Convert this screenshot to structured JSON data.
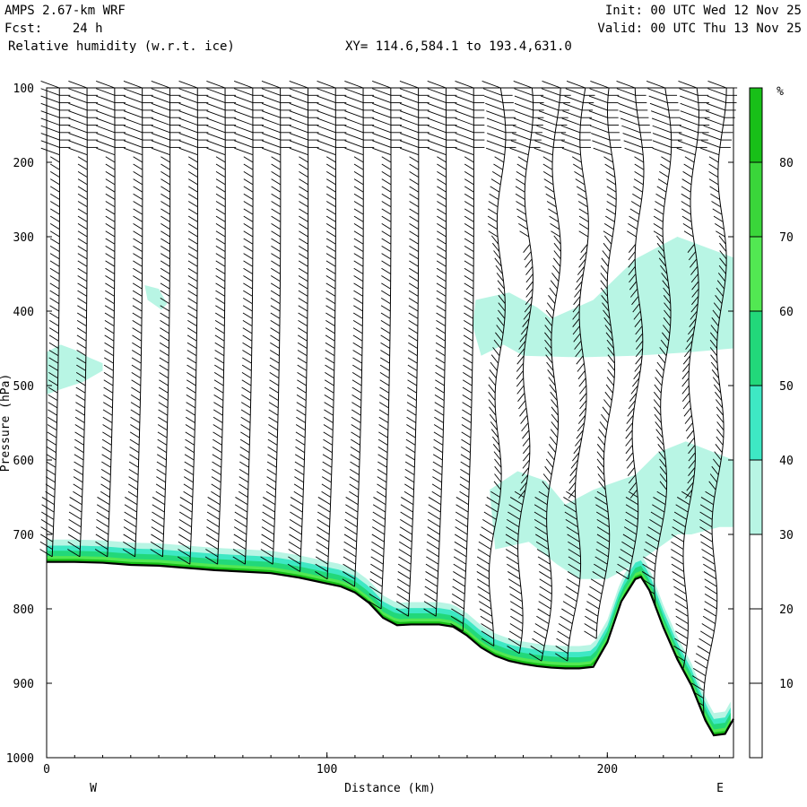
{
  "header": {
    "model": "AMPS 2.67-km WRF",
    "forecast": "Fcst:    24 h",
    "field": "Relative humidity (w.r.t. ice)",
    "init": "Init: 00 UTC Wed 12 Nov 25",
    "valid": "Valid: 00 UTC Thu 13 Nov 25",
    "xy": "XY= 114.6,584.1 to 193.4,631.0"
  },
  "chart_data": {
    "type": "cross-section",
    "title": "Relative humidity (w.r.t. ice)",
    "xlabel": "Distance (km)",
    "ylabel": "Pressure (hPa)",
    "x_left_label": "W",
    "x_right_label": "E",
    "xlim": [
      0,
      245
    ],
    "ylim": [
      1000,
      100
    ],
    "x_ticks": [
      0,
      100,
      200
    ],
    "y_ticks": [
      100,
      200,
      300,
      400,
      500,
      600,
      700,
      800,
      900,
      1000
    ],
    "colorbar": {
      "unit": "%",
      "levels": [
        0,
        10,
        20,
        30,
        40,
        50,
        60,
        70,
        80,
        90
      ],
      "tick_labels": [
        "10",
        "20",
        "30",
        "40",
        "50",
        "60",
        "70",
        "80"
      ],
      "colors": [
        "#ffffff",
        "#ffffff",
        "#ffffff",
        "#b8f5e4",
        "#3ee8c4",
        "#22d87a",
        "#52e852",
        "#3ad63a",
        "#18c018"
      ]
    },
    "terrain": {
      "x": [
        0,
        10,
        20,
        30,
        40,
        50,
        60,
        70,
        80,
        90,
        100,
        105,
        110,
        115,
        120,
        125,
        130,
        140,
        145,
        150,
        155,
        160,
        165,
        170,
        175,
        180,
        185,
        190,
        195,
        200,
        205,
        210,
        212,
        215,
        220,
        225,
        230,
        235,
        238,
        242,
        245
      ],
      "p": [
        737,
        737,
        738,
        741,
        742,
        745,
        748,
        750,
        752,
        758,
        766,
        770,
        778,
        792,
        812,
        822,
        821,
        821,
        824,
        836,
        852,
        863,
        870,
        874,
        877,
        879,
        880,
        880,
        878,
        845,
        790,
        760,
        757,
        775,
        825,
        868,
        903,
        950,
        970,
        968,
        948
      ]
    },
    "rh_regions": [
      {
        "level": 30,
        "x": [
          0,
          5,
          10,
          15,
          20,
          20,
          13,
          5,
          0
        ],
        "p": [
          455,
          445,
          452,
          462,
          470,
          480,
          495,
          505,
          512
        ]
      },
      {
        "level": 30,
        "x": [
          35,
          40,
          43,
          41,
          36,
          35
        ],
        "p": [
          365,
          370,
          390,
          398,
          385,
          365
        ]
      },
      {
        "level": 30,
        "x": [
          153,
          165,
          175,
          180,
          195,
          210,
          225,
          245,
          245,
          230,
          210,
          190,
          170,
          163,
          155,
          152,
          153
        ],
        "p": [
          385,
          375,
          395,
          410,
          385,
          330,
          300,
          328,
          450,
          455,
          460,
          462,
          460,
          445,
          460,
          420,
          385
        ]
      },
      {
        "level": 30,
        "x": [
          158,
          168,
          178,
          185,
          195,
          210,
          218,
          228,
          245,
          245,
          240,
          230,
          225,
          212,
          200,
          190,
          182,
          172,
          160,
          158
        ],
        "p": [
          640,
          615,
          628,
          660,
          640,
          620,
          590,
          575,
          600,
          690,
          690,
          700,
          700,
          735,
          760,
          760,
          740,
          710,
          720,
          640
        ]
      }
    ]
  },
  "icons": {
    "wind_barbs": "wind-barb-icon"
  }
}
